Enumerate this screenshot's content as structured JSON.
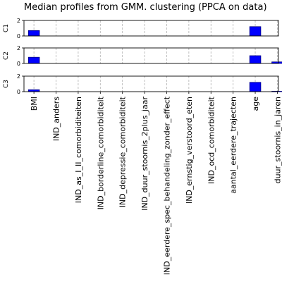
{
  "chart_data": {
    "type": "bar",
    "title": "Median profiles from GMM. clustering (PPCA on data)",
    "categories": [
      "BMI",
      "IND_anders",
      "IND_as_I_II_comorbiditeiten",
      "IND_borderline_comorbiditeit",
      "IND_depressie_comorbiditeit",
      "IND_duur_stoornis_2plus_jaar",
      "IND_eerdere_spec_behandeling_zonder_effect",
      "IND_ernstig_verstoord_eten",
      "IND_ocd_comorbiditeit",
      "aantal_eerdere_trajecten",
      "age",
      "duur_stoornis_in_jaren"
    ],
    "ylim": [
      0,
      2
    ],
    "yticks": [
      "0",
      "2"
    ],
    "grid": "x-dashed",
    "series": [
      {
        "label": "C1",
        "values": [
          0.7,
          0,
          0,
          0,
          0,
          0,
          0,
          0,
          0,
          0,
          1.2,
          0
        ]
      },
      {
        "label": "C2",
        "values": [
          0.8,
          0,
          0,
          0,
          0,
          0,
          0,
          0,
          0,
          0,
          1.0,
          0.2
        ]
      },
      {
        "label": "C3",
        "values": [
          0.25,
          0,
          0,
          0,
          0,
          0,
          0,
          0,
          0,
          0,
          1.2,
          0.05
        ]
      }
    ]
  }
}
